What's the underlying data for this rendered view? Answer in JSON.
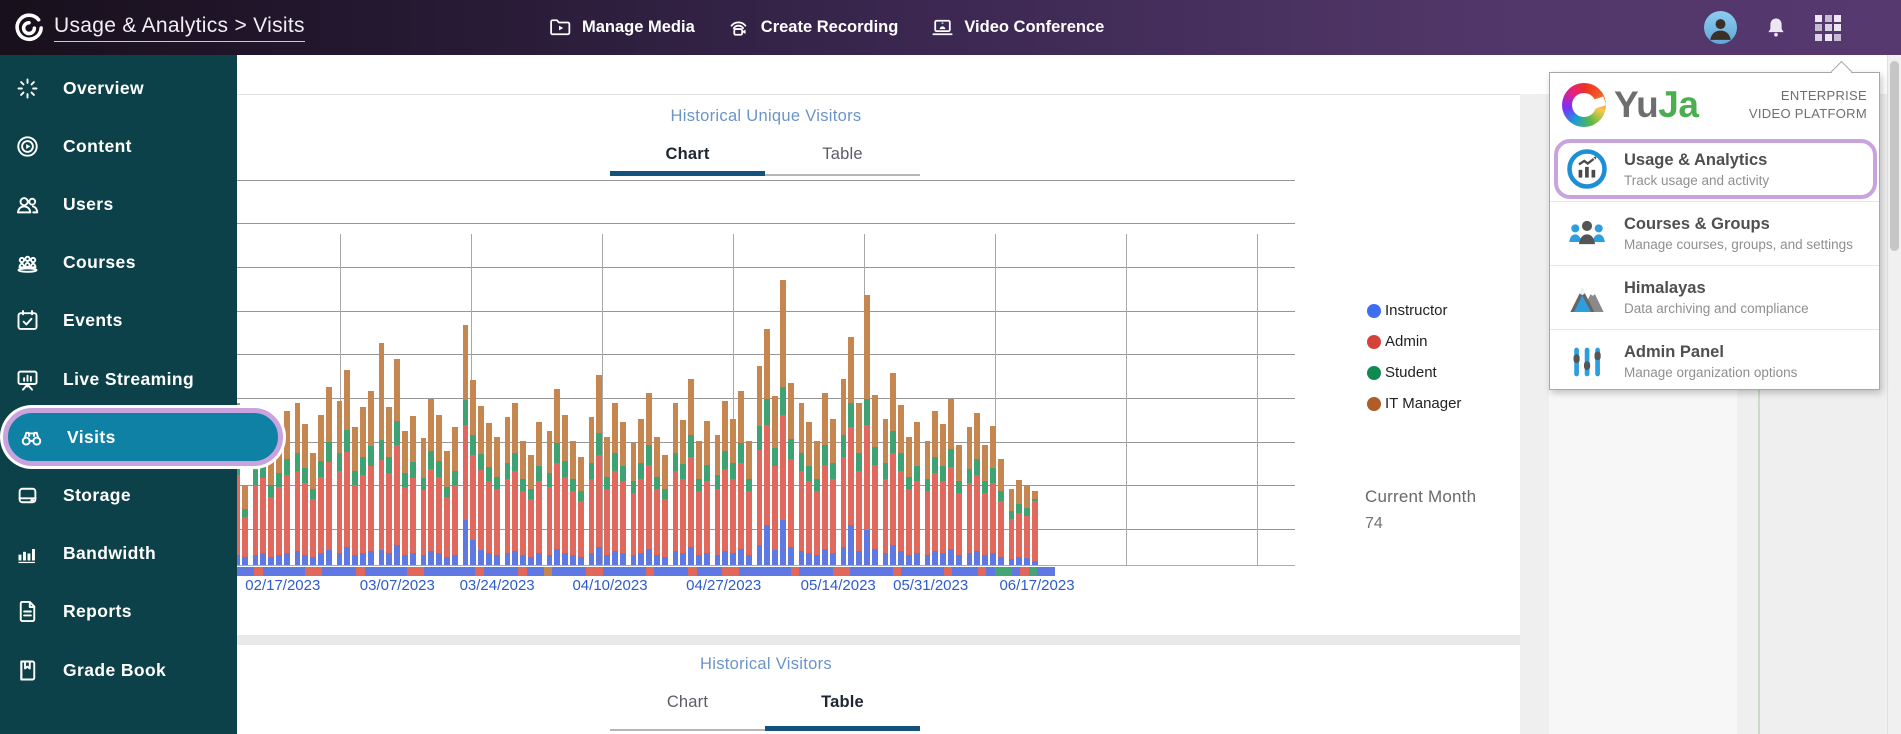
{
  "header": {
    "title": "Usage & Analytics > Visits",
    "actions": [
      {
        "label": "Manage Media",
        "icon": "manage-media"
      },
      {
        "label": "Create Recording",
        "icon": "create-recording"
      },
      {
        "label": "Video Conference",
        "icon": "video-conference"
      }
    ]
  },
  "sidebar": {
    "items": [
      {
        "label": "Overview",
        "icon": "overview",
        "active": false
      },
      {
        "label": "Content",
        "icon": "content",
        "active": false
      },
      {
        "label": "Users",
        "icon": "users",
        "active": false
      },
      {
        "label": "Courses",
        "icon": "courses",
        "active": false
      },
      {
        "label": "Events",
        "icon": "events",
        "active": false
      },
      {
        "label": "Live Streaming",
        "icon": "live-streaming",
        "active": false
      },
      {
        "label": "Visits",
        "icon": "visits",
        "active": true
      },
      {
        "label": "Storage",
        "icon": "storage",
        "active": false
      },
      {
        "label": "Bandwidth",
        "icon": "bandwidth",
        "active": false
      },
      {
        "label": "Reports",
        "icon": "reports",
        "active": false
      },
      {
        "label": "Grade Book",
        "icon": "grade-book",
        "active": false
      }
    ]
  },
  "sections": {
    "unique_visitors": {
      "title": "Historical Unique Visitors",
      "tabs": [
        {
          "label": "Chart",
          "active": true
        },
        {
          "label": "Table",
          "active": false
        }
      ]
    },
    "visitors": {
      "title": "Historical Visitors",
      "tabs": [
        {
          "label": "Chart",
          "active": false
        },
        {
          "label": "Table",
          "active": true
        }
      ]
    },
    "current_month": {
      "label": "Current Month",
      "value": "74"
    }
  },
  "chart_data": {
    "type": "bar",
    "stacked": true,
    "title": "Historical Unique Visitors",
    "x_tick_labels": [
      "02/17/2023",
      "03/07/2023",
      "03/24/2023",
      "04/10/2023",
      "04/27/2023",
      "05/14/2023",
      "05/31/2023",
      "06/17/2023"
    ],
    "x_tick_pct": [
      5.6,
      19.6,
      31.8,
      45.6,
      59.5,
      73.5,
      84.8,
      97.8
    ],
    "y_axis_labels_visible": false,
    "y_note": "y-axis labels hidden behind sidebar; values are estimated relative units",
    "legend_position": "right",
    "grid": true,
    "series": [
      {
        "name": "Instructor",
        "color": "#5e7ae2",
        "legend_color": "#3d6ef0"
      },
      {
        "name": "Admin",
        "color": "#e0685c",
        "legend_color": "#d5423a"
      },
      {
        "name": "Student",
        "color": "#3fa273",
        "legend_color": "#118a52"
      },
      {
        "name": "IT Manager",
        "color": "#c6864f",
        "legend_color": "#b05c28"
      }
    ],
    "bars": [
      [
        10,
        80,
        20,
        52
      ],
      [
        8,
        40,
        8,
        24
      ],
      [
        10,
        70,
        15,
        45
      ],
      [
        12,
        75,
        18,
        50
      ],
      [
        8,
        60,
        12,
        40
      ],
      [
        10,
        68,
        14,
        42
      ],
      [
        12,
        78,
        16,
        48
      ],
      [
        14,
        80,
        18,
        50
      ],
      [
        10,
        72,
        15,
        44
      ],
      [
        8,
        58,
        10,
        36
      ],
      [
        12,
        76,
        16,
        46
      ],
      [
        15,
        88,
        20,
        55
      ],
      [
        12,
        82,
        18,
        52
      ],
      [
        18,
        95,
        22,
        60
      ],
      [
        10,
        70,
        14,
        44
      ],
      [
        12,
        78,
        18,
        50
      ],
      [
        14,
        85,
        20,
        55
      ],
      [
        15,
        90,
        20,
        97
      ],
      [
        12,
        80,
        16,
        50
      ],
      [
        20,
        100,
        24,
        62
      ],
      [
        10,
        68,
        14,
        42
      ],
      [
        12,
        75,
        16,
        46
      ],
      [
        10,
        65,
        12,
        40
      ],
      [
        14,
        82,
        18,
        52
      ],
      [
        12,
        76,
        16,
        46
      ],
      [
        8,
        60,
        10,
        36
      ],
      [
        10,
        70,
        14,
        44
      ],
      [
        45,
        95,
        25,
        75
      ],
      [
        25,
        85,
        20,
        55
      ],
      [
        15,
        80,
        16,
        48
      ],
      [
        12,
        72,
        14,
        44
      ],
      [
        10,
        66,
        12,
        40
      ],
      [
        12,
        74,
        16,
        46
      ],
      [
        14,
        80,
        18,
        50
      ],
      [
        10,
        64,
        12,
        38
      ],
      [
        8,
        58,
        10,
        34
      ],
      [
        12,
        72,
        15,
        44
      ],
      [
        10,
        68,
        14,
        42
      ],
      [
        16,
        86,
        20,
        54
      ],
      [
        12,
        76,
        16,
        46
      ],
      [
        10,
        64,
        12,
        38
      ],
      [
        8,
        56,
        10,
        34
      ],
      [
        12,
        74,
        16,
        46
      ],
      [
        18,
        92,
        22,
        58
      ],
      [
        10,
        66,
        12,
        40
      ],
      [
        14,
        80,
        18,
        50
      ],
      [
        12,
        72,
        15,
        44
      ],
      [
        10,
        62,
        12,
        38
      ],
      [
        12,
        74,
        16,
        44
      ],
      [
        16,
        84,
        20,
        52
      ],
      [
        10,
        66,
        12,
        40
      ],
      [
        8,
        58,
        10,
        34
      ],
      [
        14,
        80,
        18,
        50
      ],
      [
        12,
        74,
        15,
        44
      ],
      [
        18,
        90,
        22,
        56
      ],
      [
        10,
        64,
        12,
        38
      ],
      [
        12,
        72,
        16,
        44
      ],
      [
        10,
        66,
        14,
        40
      ],
      [
        14,
        82,
        18,
        50
      ],
      [
        12,
        74,
        16,
        44
      ],
      [
        16,
        86,
        20,
        52
      ],
      [
        10,
        64,
        12,
        38
      ],
      [
        20,
        95,
        24,
        60
      ],
      [
        40,
        100,
        26,
        70
      ],
      [
        15,
        84,
        18,
        52
      ],
      [
        45,
        105,
        28,
        107
      ],
      [
        18,
        88,
        20,
        56
      ],
      [
        14,
        80,
        18,
        50
      ],
      [
        12,
        72,
        15,
        44
      ],
      [
        10,
        64,
        12,
        38
      ],
      [
        16,
        84,
        20,
        52
      ],
      [
        12,
        74,
        16,
        44
      ],
      [
        18,
        90,
        22,
        56
      ],
      [
        40,
        98,
        24,
        66
      ],
      [
        14,
        80,
        18,
        50
      ],
      [
        35,
        105,
        26,
        104
      ],
      [
        16,
        84,
        18,
        52
      ],
      [
        12,
        74,
        16,
        44
      ],
      [
        20,
        92,
        22,
        58
      ],
      [
        14,
        80,
        18,
        48
      ],
      [
        10,
        66,
        12,
        40
      ],
      [
        12,
        72,
        15,
        44
      ],
      [
        10,
        64,
        12,
        38
      ],
      [
        14,
        78,
        16,
        46
      ],
      [
        12,
        72,
        15,
        42
      ],
      [
        16,
        82,
        18,
        50
      ],
      [
        10,
        62,
        12,
        36
      ],
      [
        12,
        70,
        14,
        42
      ],
      [
        14,
        76,
        16,
        46
      ],
      [
        10,
        62,
        12,
        36
      ],
      [
        12,
        70,
        15,
        42
      ],
      [
        8,
        56,
        10,
        32
      ],
      [
        6,
        40,
        8,
        22
      ],
      [
        8,
        44,
        9,
        24
      ],
      [
        7,
        42,
        8,
        23
      ],
      [
        4,
        60,
        2,
        8
      ]
    ],
    "bar_groups": [
      2,
      5,
      5,
      5,
      5,
      5,
      5,
      5,
      5,
      5,
      5,
      5,
      5,
      5,
      5,
      5,
      5,
      5,
      5,
      4
    ],
    "navigator_pattern": "bbrbbbbbrrbbbbrbbbbbrrbbbbbbrbbbbrbbtbbbbrrbbbbbrbbbbrbbbrrbbbbbbrbbbbrrbbbbbrbbbbbrbbbrbggbrgb"
  },
  "app_panel": {
    "brand": {
      "name": "YuJa",
      "name_part_1": "Yu",
      "name_part_2": "Ja",
      "tagline_line1": "ENTERPRISE",
      "tagline_line2": "VIDEO PLATFORM"
    },
    "items": [
      {
        "title": "Usage & Analytics",
        "subtitle": "Track usage and activity",
        "icon": "usage-analytics",
        "highlighted": true
      },
      {
        "title": "Courses & Groups",
        "subtitle": "Manage courses, groups, and settings",
        "icon": "courses-groups",
        "highlighted": false
      },
      {
        "title": "Himalayas",
        "subtitle": "Data archiving and compliance",
        "icon": "himalayas",
        "highlighted": false
      },
      {
        "title": "Admin Panel",
        "subtitle": "Manage organization options",
        "icon": "admin-panel",
        "highlighted": false
      }
    ]
  }
}
